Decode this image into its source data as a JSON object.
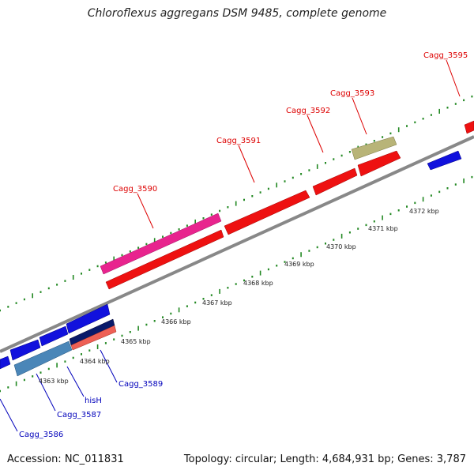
{
  "title": "Chloroflexus aggregans DSM 9485, complete genome",
  "footer": {
    "accession": "Accession: NC_011831",
    "topology": "Topology: circular; Length: 4,684,931 bp; Genes: 3,787"
  },
  "colors": {
    "forward_gene": "#ee1111",
    "forward_highlight": "#e8248e",
    "forward_other": "#b8b478",
    "reverse_gene": "#1111dd",
    "reverse_steel": "#4a86b8",
    "reverse_dark": "#0a1a6a",
    "reverse_salmon": "#ee6055",
    "backbone": "#888888",
    "tick": "#228822",
    "forward_label": "#dd0000",
    "reverse_label": "#0000bb"
  },
  "scale_labels": [
    "4363 kbp",
    "4364 kbp",
    "4365 kbp",
    "4366 kbp",
    "4367 kbp",
    "4368 kbp",
    "4369 kbp",
    "4370 kbp",
    "4371 kbp",
    "4372 kbp"
  ],
  "forward_labels": [
    "Cagg_3590",
    "Cagg_3591",
    "Cagg_3592",
    "Cagg_3593",
    "Cagg_3595"
  ],
  "reverse_labels": [
    "Cagg_3586",
    "Cagg_3587",
    "hisH",
    "Cagg_3589"
  ]
}
